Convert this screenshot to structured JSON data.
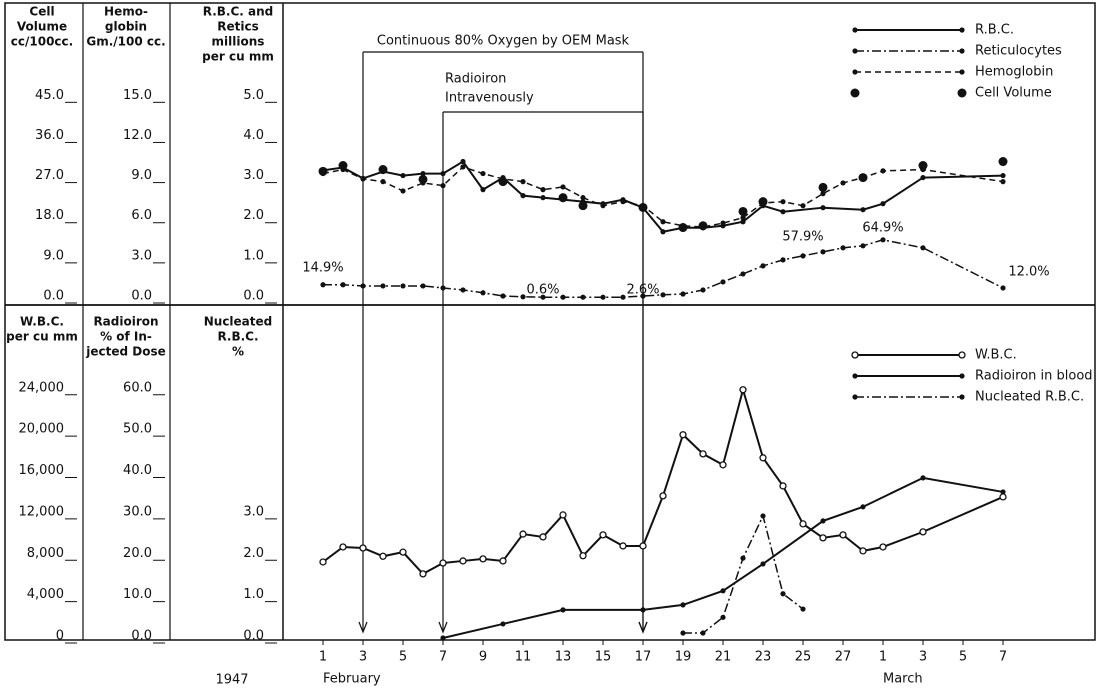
{
  "chart_data": [
    {
      "type": "line",
      "y_label": [
        "R.B.C. and",
        "Retics",
        "millions",
        "per cu mm"
      ],
      "ylim": [
        0,
        7.3
      ],
      "yticks": [
        {
          "value": 0,
          "label": "0.0"
        },
        {
          "value": 1,
          "label": "1.0"
        },
        {
          "value": 2,
          "label": "2.0"
        },
        {
          "value": 3,
          "label": "3.0"
        },
        {
          "value": 4,
          "label": "4.0"
        },
        {
          "value": 5,
          "label": "5.0"
        }
      ],
      "y2_label": [
        "Hemo-",
        "globin",
        "Gm./100 cc."
      ],
      "y2lim": [
        0,
        21.9
      ],
      "y2ticks": [
        {
          "value": 0,
          "label": "0.0"
        },
        {
          "value": 3,
          "label": "3.0"
        },
        {
          "value": 6,
          "label": "6.0"
        },
        {
          "value": 9,
          "label": "9.0"
        },
        {
          "value": 12,
          "label": "12.0"
        },
        {
          "value": 15,
          "label": "15.0"
        }
      ],
      "y3_label": [
        "Cell",
        "Volume",
        "cc/100cc."
      ],
      "y3lim": [
        0,
        65.7
      ],
      "y3ticks": [
        {
          "value": 0,
          "label": "0.0"
        },
        {
          "value": 9,
          "label": "9.0"
        },
        {
          "value": 18,
          "label": "18.0"
        },
        {
          "value": 27,
          "label": "27.0"
        },
        {
          "value": 36,
          "label": "36.0"
        },
        {
          "value": 45,
          "label": "45.0"
        }
      ],
      "xlim": [
        -1,
        39.6
      ],
      "legend": "upper right",
      "series": [
        {
          "name": "R.B.C.",
          "color": "#111111",
          "style": "solid",
          "marker": "dot",
          "axis": "y",
          "x": [
            1,
            2,
            3,
            4,
            5,
            6,
            7,
            8,
            9,
            10,
            11,
            12,
            13,
            14,
            15,
            16,
            17,
            18,
            19,
            20,
            21,
            22,
            23,
            24,
            26,
            28,
            29,
            31,
            35
          ],
          "values": [
            3.18,
            3.25,
            2.98,
            3.15,
            3.05,
            3.1,
            3.1,
            3.4,
            2.7,
            3.0,
            2.55,
            2.5,
            2.45,
            2.4,
            2.35,
            2.45,
            2.25,
            1.65,
            1.75,
            1.75,
            1.8,
            1.9,
            2.3,
            2.15,
            2.25,
            2.2,
            2.35,
            3.0,
            3.05
          ]
        },
        {
          "name": "Reticulocytes",
          "color": "#111111",
          "style": "dashdot",
          "marker": "dot",
          "axis": "y",
          "x": [
            1,
            2,
            3,
            4,
            5,
            6,
            7,
            8,
            9,
            10,
            11,
            12,
            13,
            14,
            15,
            16,
            17,
            18,
            19,
            20,
            21,
            22,
            23,
            24,
            25,
            26,
            27,
            28,
            29,
            31,
            35
          ],
          "values": [
            0.33,
            0.33,
            0.3,
            0.3,
            0.3,
            0.3,
            0.25,
            0.2,
            0.13,
            0.05,
            0.03,
            0.02,
            0.02,
            0.02,
            0.02,
            0.02,
            0.05,
            0.08,
            0.1,
            0.2,
            0.4,
            0.6,
            0.8,
            0.95,
            1.05,
            1.15,
            1.25,
            1.3,
            1.45,
            1.25,
            0.25
          ]
        },
        {
          "name": "Hemoglobin",
          "color": "#111111",
          "style": "dashed",
          "marker": "dot",
          "axis": "y2",
          "x": [
            1,
            2,
            3,
            4,
            5,
            6,
            7,
            8,
            9,
            10,
            11,
            12,
            13,
            14,
            15,
            16,
            17,
            18,
            19,
            20,
            21,
            22,
            23,
            24,
            25,
            26,
            27,
            28,
            29,
            31,
            35
          ],
          "values": [
            9.3,
            9.6,
            8.9,
            8.7,
            8.0,
            8.6,
            8.4,
            9.8,
            9.3,
            8.9,
            8.7,
            8.1,
            8.3,
            7.5,
            6.9,
            7.2,
            6.9,
            5.7,
            5.4,
            5.3,
            5.6,
            6.0,
            7.1,
            7.2,
            6.9,
            7.8,
            8.6,
            9.0,
            9.5,
            9.6,
            8.7
          ]
        },
        {
          "name": "Cell Volume",
          "color": "#111111",
          "style": "none",
          "marker": "bigdot",
          "axis": "y3",
          "x": [
            1,
            2,
            4,
            6,
            10,
            13,
            14,
            17,
            19,
            20,
            22,
            23,
            26,
            28,
            31,
            35
          ],
          "values": [
            28.4,
            29.7,
            28.8,
            26.6,
            26.1,
            22.5,
            20.7,
            20.3,
            15.8,
            16.2,
            19.4,
            21.6,
            24.8,
            27.0,
            29.7,
            30.6
          ]
        }
      ],
      "annotations": [
        {
          "text": "14.9%",
          "x": 1
        },
        {
          "text": "0.6%",
          "x": 12
        },
        {
          "text": "2.6%",
          "x": 17
        },
        {
          "text": "57.9%",
          "x": 25
        },
        {
          "text": "64.9%",
          "x": 29
        },
        {
          "text": "12.0%",
          "x": 35
        }
      ],
      "periods": [
        {
          "label": [
            "Continuous 80% Oxygen by OEM Mask"
          ],
          "start": 3,
          "end": 17
        },
        {
          "label": [
            "Radioiron",
            "Intravenously"
          ],
          "start": 7,
          "end": 17
        }
      ]
    },
    {
      "type": "line",
      "y_label": [
        "W.B.C.",
        "per cu mm"
      ],
      "ylim": [
        0,
        32000
      ],
      "yticks": [
        0,
        {
          "value": 4000,
          "label": "4,000"
        },
        {
          "value": 8000,
          "label": "8,000"
        },
        {
          "value": 12000,
          "label": "12,000"
        },
        {
          "value": 16000,
          "label": "16,000"
        },
        {
          "value": 20000,
          "label": "20,000"
        },
        {
          "value": 24000,
          "label": "24,000"
        }
      ],
      "y2_label": [
        "Radioiron",
        "% of In-",
        "jected Dose"
      ],
      "y2lim": [
        0,
        80
      ],
      "y2ticks": [
        {
          "value": 0,
          "label": "0.0"
        },
        {
          "value": 10,
          "label": "10.0"
        },
        {
          "value": 20,
          "label": "20.0"
        },
        {
          "value": 30,
          "label": "30.0"
        },
        {
          "value": 40,
          "label": "40.0"
        },
        {
          "value": 50,
          "label": "50.0"
        },
        {
          "value": 60,
          "label": "60.0"
        }
      ],
      "y3_label": [
        "Nucleated",
        "R.B.C.",
        "%"
      ],
      "y3lim": [
        0,
        8
      ],
      "y3ticks": [
        {
          "value": 0,
          "label": "0.0"
        },
        {
          "value": 1,
          "label": "1.0"
        },
        {
          "value": 2,
          "label": "2.0"
        },
        {
          "value": 3,
          "label": "3.0"
        }
      ],
      "xlim": [
        -1,
        39.6
      ],
      "xticks": [
        1,
        3,
        5,
        7,
        9,
        11,
        13,
        15,
        17,
        19,
        21,
        23,
        25,
        27,
        {
          "value": 29,
          "label": "1"
        },
        {
          "value": 31,
          "label": "3"
        },
        {
          "value": 33,
          "label": "5"
        },
        {
          "value": 35,
          "label": "7"
        }
      ],
      "year": "1947",
      "months": [
        {
          "label": "February",
          "x": 1
        },
        {
          "label": "March",
          "x": 29
        }
      ],
      "legend": "upper right",
      "series": [
        {
          "name": "W.B.C.",
          "color": "#111111",
          "style": "solid",
          "marker": "circle",
          "axis": "y",
          "x": [
            1,
            2,
            3,
            4,
            5,
            6,
            7,
            8,
            9,
            10,
            11,
            12,
            13,
            14,
            15,
            16,
            17,
            18,
            19,
            20,
            21,
            22,
            23,
            24,
            25,
            26,
            27,
            28,
            29,
            31,
            35
          ],
          "values": [
            7350,
            8800,
            8700,
            7900,
            8300,
            6200,
            7250,
            7450,
            7650,
            7450,
            10050,
            9770,
            11900,
            7950,
            9970,
            8900,
            8900,
            13740,
            19650,
            17800,
            16740,
            24000,
            17420,
            14700,
            11030,
            9680,
            9970,
            8420,
            8800,
            10260,
            13640
          ]
        },
        {
          "name": "Radioiron in blood",
          "color": "#111111",
          "style": "solid",
          "marker": "dot",
          "axis": "y2",
          "x": [
            7,
            10,
            13,
            17,
            19,
            21,
            23,
            26,
            28,
            31,
            35
          ],
          "values": [
            0,
            3.4,
            6.8,
            6.8,
            8.0,
            11.4,
            17.9,
            28.3,
            31.7,
            38.7,
            35.3
          ]
        },
        {
          "name": "Nucleated R.B.C.",
          "color": "#111111",
          "style": "dashdot",
          "marker": "dot",
          "axis": "y3",
          "x": [
            19,
            20,
            21,
            22,
            23,
            24,
            25
          ],
          "values": [
            0.12,
            0.12,
            0.5,
            1.93,
            2.95,
            1.07,
            0.7
          ]
        }
      ]
    }
  ]
}
